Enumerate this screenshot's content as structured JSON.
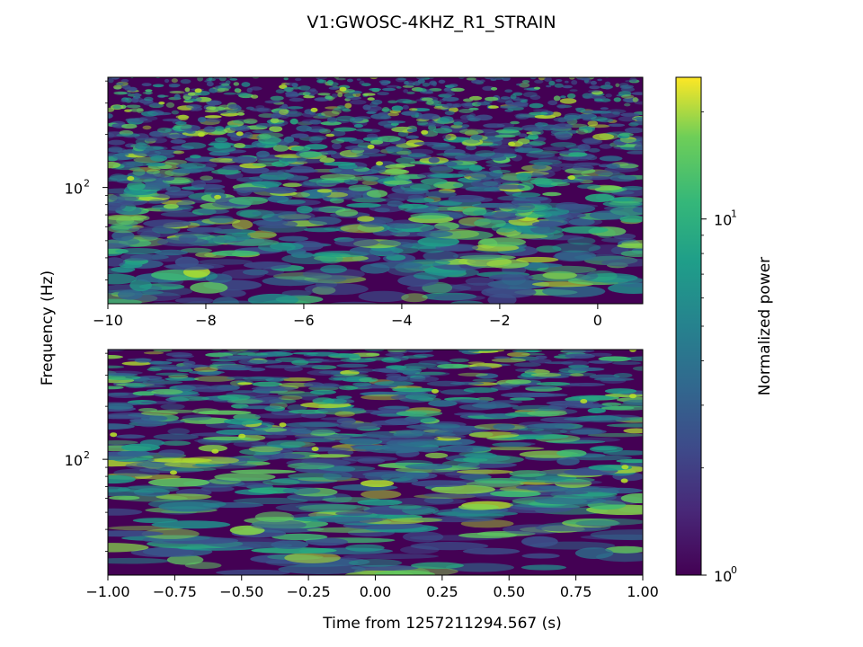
{
  "figure_title": "V1:GWOSC-4KHZ_R1_STRAIN",
  "chart_data": [
    {
      "type": "heatmap",
      "panel": "top",
      "description_of_view": "Q-transform spectrogram, full segment",
      "xlim": [
        -10,
        0.92
      ],
      "ylim": [
        22,
        420
      ],
      "yscale": "log",
      "xticks": [
        -10,
        -8,
        -6,
        -4,
        -2,
        0
      ],
      "xticklabels": [
        "−10",
        "−8",
        "−6",
        "−4",
        "−2",
        "0"
      ],
      "yticks_major": [
        100
      ],
      "yticklabels_major": [
        "10",
        "2"
      ],
      "yticks_minor": [
        30,
        40,
        50,
        60,
        70,
        80,
        90,
        200,
        300,
        400
      ],
      "ylabel": "Frequency (Hz)",
      "xlabel": "",
      "seed": 17
    },
    {
      "type": "heatmap",
      "panel": "bottom",
      "description_of_view": "Q-transform spectrogram, zoom around event",
      "xlim": [
        -1.0,
        1.0
      ],
      "ylim": [
        22,
        420
      ],
      "yscale": "log",
      "xticks": [
        -1.0,
        -0.75,
        -0.5,
        -0.25,
        0.0,
        0.25,
        0.5,
        0.75,
        1.0
      ],
      "xticklabels": [
        "−1.00",
        "−0.75",
        "−0.50",
        "−0.25",
        "0.00",
        "0.25",
        "0.50",
        "0.75",
        "1.00"
      ],
      "yticks_major": [
        100
      ],
      "yticklabels_major": [
        "10",
        "2"
      ],
      "yticks_minor": [
        30,
        40,
        50,
        60,
        70,
        80,
        90,
        200,
        300,
        400
      ],
      "xlabel": "Time from 1257211294.567 (s)",
      "seed": 91
    }
  ],
  "colorbar": {
    "label": "Normalized power",
    "scale": "log",
    "lim": [
      1,
      25
    ],
    "colormap": "viridis",
    "ticks_major": [
      1,
      10
    ],
    "ticklabels": [
      {
        "base": "10",
        "exp": "0"
      },
      {
        "base": "10",
        "exp": "1"
      }
    ],
    "ticks_minor": [
      2,
      3,
      4,
      5,
      6,
      7,
      8,
      9,
      20
    ]
  },
  "colors": {
    "viridis_low": "#440154",
    "viridis_mid": "#21918c",
    "viridis_high": "#fde725"
  }
}
